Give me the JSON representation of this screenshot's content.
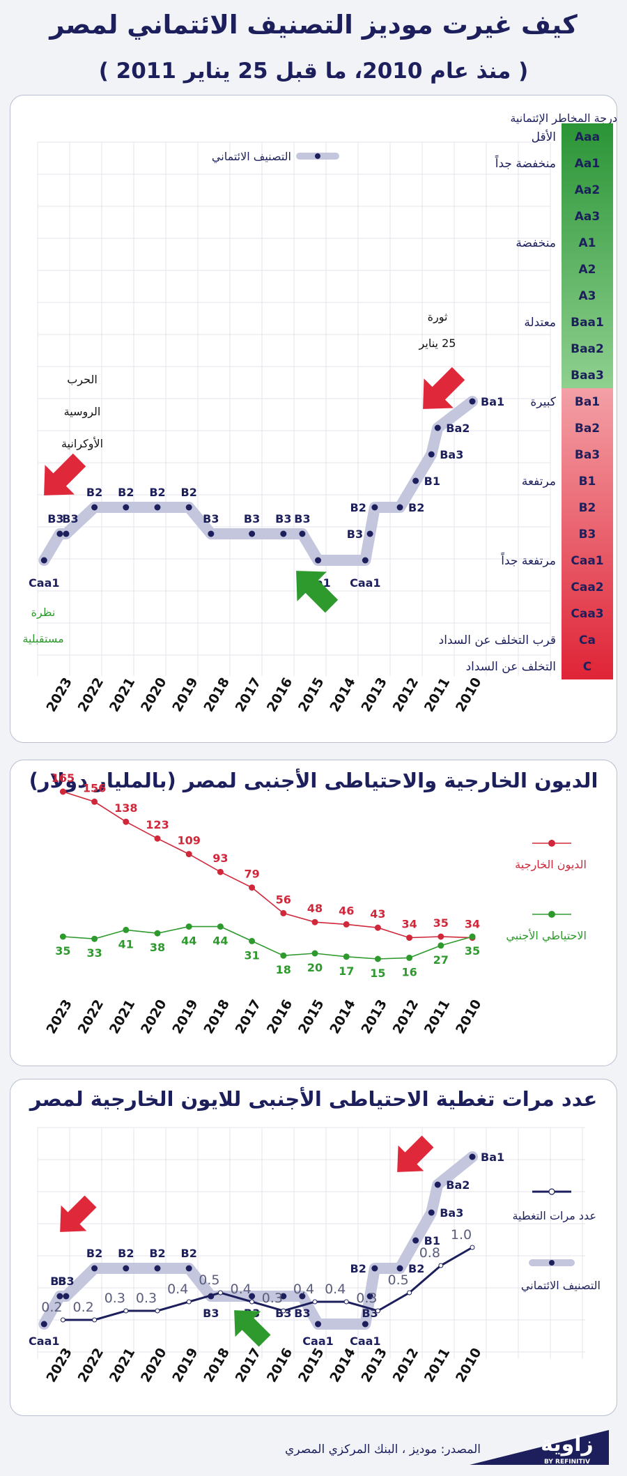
{
  "header": {
    "title": "كيف غيرت موديز التصنيف الائتماني لمصر",
    "subtitle": "( منذ عام 2010، ما قبل 25 يناير 2011 )"
  },
  "colors": {
    "navy": "#1c1f5c",
    "red_series": "#d0283a",
    "green_series": "#2e9a2e",
    "rating_band": "#c3c6dc",
    "scale_green": "#2f9b3c",
    "scale_red": "#e0283b"
  },
  "scale": {
    "header": "درجة المخاطر الإئتمانية",
    "grades": [
      "Aaa",
      "Aa1",
      "Aa2",
      "Aa3",
      "A1",
      "A2",
      "A3",
      "Baa1",
      "Baa2",
      "Baa3",
      "Ba1",
      "Ba2",
      "Ba3",
      "B1",
      "B2",
      "B3",
      "Caa1",
      "Caa2",
      "Caa3",
      "Ca",
      "C"
    ],
    "risk_labels": [
      {
        "grade": "Aaa",
        "text": "الأقل"
      },
      {
        "grade": "Aa1",
        "text": "منخفضة جداً"
      },
      {
        "grade": "A1",
        "text": "منخفضة"
      },
      {
        "grade": "Baa1",
        "text": "معتدلة"
      },
      {
        "grade": "Ba1",
        "text": "كبيرة"
      },
      {
        "grade": "B1",
        "text": "مرتفعة"
      },
      {
        "grade": "Caa1",
        "text": "مرتفعة جداً"
      },
      {
        "grade": "Ca",
        "text": "قرب التخلف عن السداد"
      },
      {
        "grade": "C",
        "text": "التخلف عن السداد"
      }
    ]
  },
  "panel1": {
    "legend": "التصنيف الائتماني",
    "annotations": {
      "war": [
        "الحرب",
        "الروسية",
        "الأوكرانية"
      ],
      "revolution": [
        "ثورة",
        "25 يناير"
      ],
      "outlook": [
        "نظرة",
        "مستقبلية"
      ]
    }
  },
  "chart_data": [
    {
      "type": "line",
      "title": "كيف غيرت موديز التصنيف الائتماني لمصر",
      "subtitle": "( منذ عام 2010، ما قبل 25 يناير 2011 )",
      "categories": [
        "2010",
        "2011",
        "2012",
        "2013",
        "2014",
        "2015",
        "2016",
        "2017",
        "2018",
        "2019",
        "2020",
        "2021",
        "2022",
        "2023"
      ],
      "series": [
        {
          "name": "التصنيف الائتماني",
          "points": [
            {
              "x": 2010.0,
              "rating": "Ba1"
            },
            {
              "x": 2011.1,
              "rating": "Ba2"
            },
            {
              "x": 2011.3,
              "rating": "Ba3"
            },
            {
              "x": 2011.8,
              "rating": "B1"
            },
            {
              "x": 2012.3,
              "rating": "B2"
            },
            {
              "x": 2013.1,
              "rating": "B2"
            },
            {
              "x": 2013.25,
              "rating": "B3"
            },
            {
              "x": 2013.4,
              "rating": "Caa1"
            },
            {
              "x": 2014.9,
              "rating": "Caa1"
            },
            {
              "x": 2015.4,
              "rating": "B3"
            },
            {
              "x": 2016.0,
              "rating": "B3"
            },
            {
              "x": 2017.0,
              "rating": "B3"
            },
            {
              "x": 2018.3,
              "rating": "B3"
            },
            {
              "x": 2019.0,
              "rating": "B2"
            },
            {
              "x": 2020.0,
              "rating": "B2"
            },
            {
              "x": 2021.0,
              "rating": "B2"
            },
            {
              "x": 2022.0,
              "rating": "B2"
            },
            {
              "x": 2022.9,
              "rating": "B3"
            },
            {
              "x": 2023.1,
              "rating": "B3"
            },
            {
              "x": 2023.6,
              "rating": "Caa1"
            }
          ]
        }
      ],
      "y_scale": [
        "Aaa",
        "Aa1",
        "Aa2",
        "Aa3",
        "A1",
        "A2",
        "A3",
        "Baa1",
        "Baa2",
        "Baa3",
        "Ba1",
        "Ba2",
        "Ba3",
        "B1",
        "B2",
        "B3",
        "Caa1",
        "Caa2",
        "Caa3",
        "Ca",
        "C"
      ],
      "grid": true,
      "legend_position": "top"
    },
    {
      "type": "line",
      "title": "الديون الخارجية والاحتياطى الأجنبى لمصر (بالمليار دولار)",
      "categories": [
        "2010",
        "2011",
        "2012",
        "2013",
        "2014",
        "2015",
        "2016",
        "2017",
        "2018",
        "2019",
        "2020",
        "2021",
        "2022",
        "2023"
      ],
      "series": [
        {
          "name": "الديون الخارجية",
          "values": [
            34,
            35,
            34,
            43,
            46,
            48,
            56,
            79,
            93,
            109,
            123,
            138,
            156,
            165
          ]
        },
        {
          "name": "الاحتياطي الأجنبي",
          "values": [
            35,
            27,
            16,
            15,
            17,
            20,
            18,
            31,
            44,
            44,
            38,
            41,
            33,
            35
          ]
        }
      ],
      "legend_position": "right",
      "grid": false
    },
    {
      "type": "line",
      "title": "عدد مرات تغطية الاحتياطى الأجنبى للايون الخارجية لمصر",
      "categories": [
        "2010",
        "2011",
        "2012",
        "2013",
        "2014",
        "2015",
        "2016",
        "2017",
        "2018",
        "2019",
        "2020",
        "2021",
        "2022",
        "2023"
      ],
      "series": [
        {
          "name": "عدد مرات التغطية",
          "values": [
            1.0,
            0.8,
            0.5,
            0.3,
            0.4,
            0.4,
            0.3,
            0.4,
            0.5,
            0.4,
            0.3,
            0.3,
            0.2,
            0.2
          ]
        },
        {
          "name": "التصنيف الائتماني"
        }
      ],
      "legend_position": "right",
      "grid": true
    }
  ]
}
